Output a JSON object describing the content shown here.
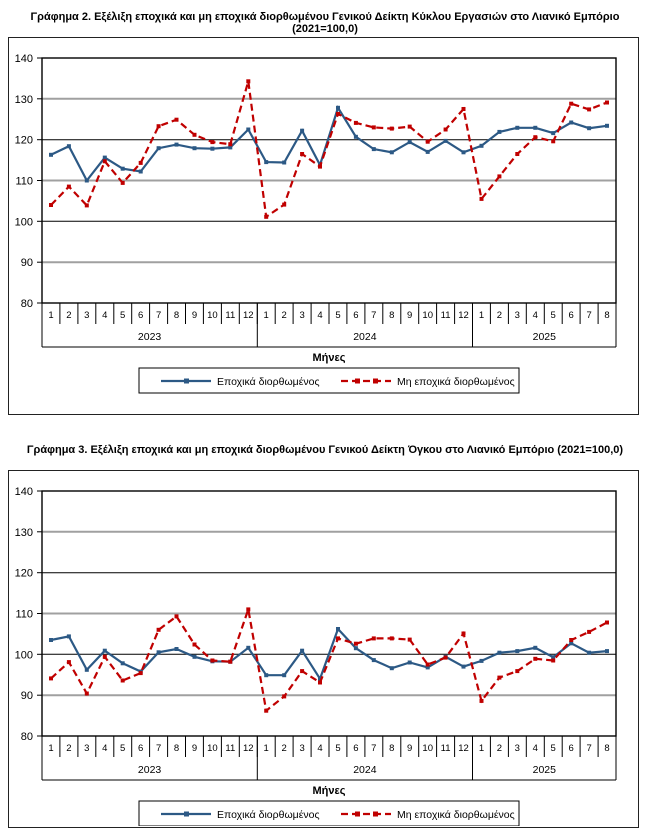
{
  "page": {
    "titles": [
      "Γράφημα 2. Εξέλιξη εποχικά και μη εποχικά διορθωμένου Γενικού Δείκτη Κύκλου Εργασιών στο Λιανικό Εμπόριο (2021=100,0)",
      "Γράφημα 3. Εξέλιξη εποχικά και μη εποχικά διορθωμένου Γενικού Δείκτη Όγκου στο Λιανικό Εμπόριο (2021=100,0)"
    ]
  },
  "colors": {
    "adjusted_line": "#2C5985",
    "unadjusted_line": "#C00000",
    "gridline_gray": "#A0A0A0",
    "gridline_black": "#000000",
    "plot_border": "#000000"
  },
  "chart_data": [
    {
      "type": "line",
      "title": "Γράφημα 2. Εξέλιξη εποχικά και μη εποχικά διορθωμένου Γενικού Δείκτη Κύκλου Εργασιών στο Λιανικό Εμπόριο (2021=100,0)",
      "xlabel": "Μήνες",
      "ylim": [
        80,
        140
      ],
      "ytick_step": 10,
      "categories": [
        "1",
        "2",
        "3",
        "4",
        "5",
        "6",
        "7",
        "8",
        "9",
        "10",
        "11",
        "12",
        "1",
        "2",
        "3",
        "4",
        "5",
        "6",
        "7",
        "8",
        "9",
        "10",
        "11",
        "12",
        "1",
        "2",
        "3",
        "4",
        "5",
        "6",
        "7",
        "8"
      ],
      "year_groups": [
        {
          "label": "2023",
          "span": 12
        },
        {
          "label": "2024",
          "span": 12
        },
        {
          "label": "2025",
          "span": 8
        }
      ],
      "legend_position": "bottom",
      "grid": true,
      "series": [
        {
          "name": "Εποχικά διορθωμένος",
          "style": "solid",
          "values": [
            116.3,
            118.4,
            110.0,
            115.6,
            112.9,
            112.2,
            117.9,
            118.8,
            117.9,
            117.8,
            118.1,
            122.5,
            114.5,
            114.4,
            122.2,
            113.8,
            127.8,
            120.7,
            117.7,
            116.9,
            119.4,
            117.0,
            119.7,
            116.9,
            118.5,
            121.9,
            122.9,
            122.9,
            121.6,
            124.2,
            122.8,
            123.4
          ]
        },
        {
          "name": "Μη εποχικά διορθωμένος",
          "style": "dashed",
          "values": [
            104.0,
            108.5,
            103.9,
            114.7,
            109.4,
            114.3,
            123.3,
            124.9,
            121.2,
            119.4,
            118.9,
            134.3,
            101.1,
            104.1,
            116.5,
            113.4,
            126.3,
            124.1,
            123.0,
            122.7,
            123.2,
            119.5,
            122.5,
            127.5,
            105.5,
            111.0,
            116.5,
            120.6,
            119.6,
            128.8,
            127.4,
            129.1
          ]
        }
      ]
    },
    {
      "type": "line",
      "title": "Γράφημα 3. Εξέλιξη εποχικά και μη εποχικά διορθωμένου Γενικού Δείκτη Όγκου στο Λιανικό Εμπόριο (2021=100,0)",
      "xlabel": "Μήνες",
      "ylim": [
        80,
        140
      ],
      "ytick_step": 10,
      "categories": [
        "1",
        "2",
        "3",
        "4",
        "5",
        "6",
        "7",
        "8",
        "9",
        "10",
        "11",
        "12",
        "1",
        "2",
        "3",
        "4",
        "5",
        "6",
        "7",
        "8",
        "9",
        "10",
        "11",
        "12",
        "1",
        "2",
        "3",
        "4",
        "5",
        "6",
        "7",
        "8"
      ],
      "year_groups": [
        {
          "label": "2023",
          "span": 12
        },
        {
          "label": "2024",
          "span": 12
        },
        {
          "label": "2025",
          "span": 8
        }
      ],
      "legend_position": "bottom",
      "grid": true,
      "series": [
        {
          "name": "Εποχικά διορθωμένος",
          "style": "solid",
          "values": [
            103.5,
            104.4,
            96.2,
            100.9,
            97.8,
            95.8,
            100.5,
            101.3,
            99.4,
            98.3,
            98.2,
            101.6,
            94.9,
            94.9,
            100.9,
            94.0,
            106.2,
            101.5,
            98.6,
            96.6,
            98.0,
            96.8,
            99.4,
            97.0,
            98.4,
            100.4,
            100.8,
            101.6,
            99.3,
            102.7,
            100.4,
            100.8
          ]
        },
        {
          "name": "Μη εποχικά διορθωμένος",
          "style": "dashed",
          "values": [
            94.1,
            98.1,
            90.4,
            99.4,
            93.6,
            95.4,
            106.0,
            109.3,
            102.4,
            98.5,
            98.2,
            111.0,
            86.2,
            89.7,
            95.9,
            93.1,
            103.9,
            102.6,
            103.9,
            103.9,
            103.6,
            97.5,
            99.2,
            105.1,
            88.6,
            94.3,
            95.9,
            98.9,
            98.5,
            103.5,
            105.5,
            107.8
          ]
        }
      ]
    }
  ]
}
